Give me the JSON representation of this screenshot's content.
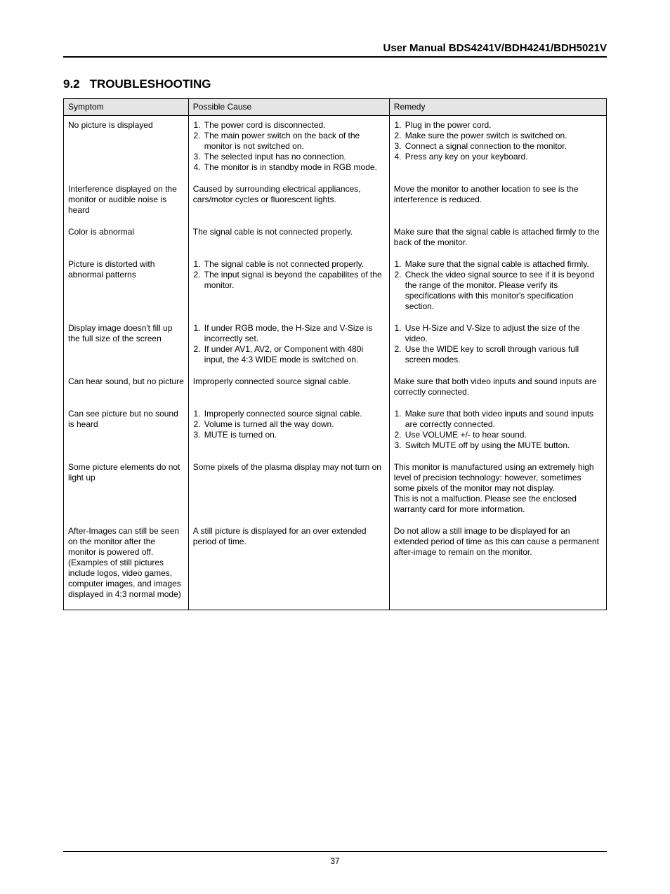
{
  "header": {
    "manual_title": "User Manual BDS4241V/BDH4241/BDH5021V"
  },
  "section": {
    "number": "9.2",
    "title": "TROUBLESHOOTING"
  },
  "table": {
    "headers": {
      "symptom": "Symptom",
      "cause": "Possible Cause",
      "remedy": "Remedy"
    },
    "rows": [
      {
        "symptom": "No picture is displayed",
        "cause_items": [
          "The power cord is disconnected.",
          "The main power switch on the back of the monitor is not switched on.",
          "The selected input has no connection.",
          "The monitor is in standby mode in RGB mode."
        ],
        "remedy_items": [
          "Plug in the power cord.",
          "Make sure the power switch is switched on.",
          "Connect a signal connection to the monitor.",
          "Press any key on your keyboard."
        ]
      },
      {
        "symptom": "Interference displayed on the monitor or audible noise is heard",
        "cause_text": "Caused by surrounding electrical appliances, cars/motor cycles or fluorescent lights.",
        "remedy_text": "Move the monitor to another location to see is the interference is reduced."
      },
      {
        "symptom": "Color is abnormal",
        "cause_text": "The signal cable is not connected properly.",
        "remedy_text": "Make sure that the signal cable is attached firmly to the back of the monitor."
      },
      {
        "symptom": "Picture is distorted with abnormal patterns",
        "cause_items": [
          "The signal cable is not connected properly.",
          "The input signal is beyond the capabilites of the monitor."
        ],
        "remedy_items": [
          "Make sure that the signal cable is attached firmly.",
          "Check the video signal source to see if it is beyond the range of the monitor. Please verify its specifications with this monitor's specification section."
        ]
      },
      {
        "symptom": "Display image doesn't fill up the full size of the screen",
        "cause_items": [
          "If under RGB mode, the H-Size and V-Size is incorrectly set.",
          "If under AV1, AV2, or Component with 480i input, the 4:3 WIDE mode is switched on."
        ],
        "remedy_items": [
          "Use H-Size and V-Size to adjust the size of the video.",
          "Use the WIDE key to scroll through various full screen modes."
        ]
      },
      {
        "symptom": "Can hear sound, but no picture",
        "cause_text": "Improperly connected source signal cable.",
        "remedy_text": "Make sure that both video inputs and sound inputs are correctly connected."
      },
      {
        "symptom": "Can see picture but no sound is heard",
        "cause_items": [
          "Improperly connected source signal cable.",
          "Volume is turned all the way down.",
          "MUTE is turned on."
        ],
        "remedy_items": [
          "Make sure that both video inputs and sound inputs are correctly connected.",
          "Use VOLUME +/- to hear sound.",
          "Switch MUTE off by using the MUTE button."
        ]
      },
      {
        "symptom": "Some picture elements do not light up",
        "cause_text": "Some pixels of the plasma display may not turn on",
        "remedy_text": "This monitor is manufactured using an extremely high level of precision technology: however, sometimes some pixels of the monitor may not display.\nThis is not a malfuction.  Please see the enclosed warranty card for more information."
      },
      {
        "symptom": "After-Images can still be seen on the monitor after the monitor is powered off. (Examples of still pictures include logos, video games, computer images, and images displayed in 4:3 normal mode)",
        "cause_text": "A still picture is displayed for an over extended period of time.",
        "remedy_text": "Do not allow a still image to be displayed for an extended period of time as this can cause a permanent after-image to remain on the monitor."
      }
    ]
  },
  "footer": {
    "page_number": "37"
  }
}
